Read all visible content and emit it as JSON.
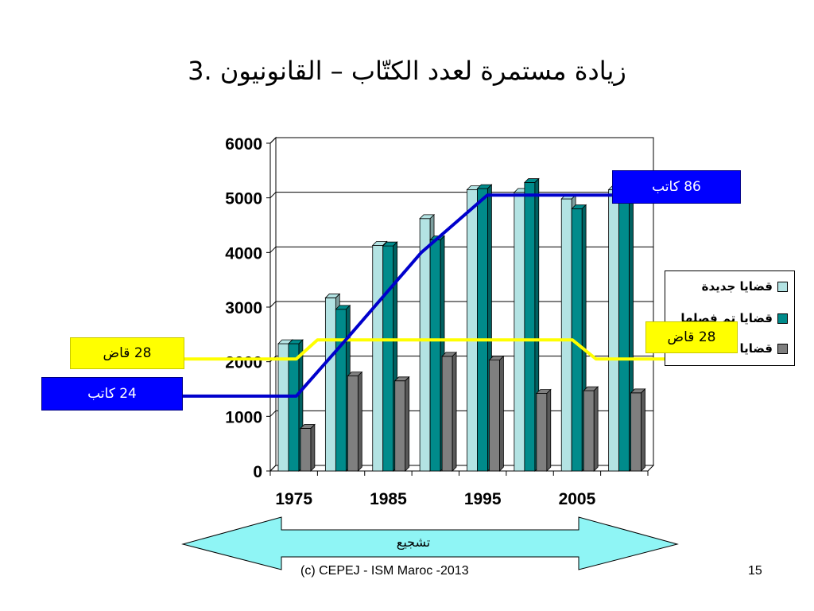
{
  "slide": {
    "title": "3. زيادة مستمرة لعدد الكتّاب – القانونيون",
    "footer": "(c) CEPEJ - ISM Maroc -2013",
    "page_number": "15",
    "arrow_label": "تشجيع"
  },
  "callouts": {
    "judges_left": "28 قاض",
    "judges_right": "28 قاض",
    "clerks_left": "24 كاتب",
    "clerks_right": "86 كاتب"
  },
  "chart_data": {
    "type": "bar",
    "style": "3d-clustered-bar-with-overlay-lines",
    "y_ticks": [
      0,
      1000,
      2000,
      3000,
      4000,
      5000,
      6000
    ],
    "ylim": [
      0,
      6000
    ],
    "x_tick_labels": [
      "1975",
      "1985",
      "1995",
      "2005"
    ],
    "grid": true,
    "legend_placement": "right",
    "groups": 8,
    "series": [
      {
        "name": "قضايا جديدة",
        "color": "#b3e3e3",
        "values": [
          2330,
          3170,
          4130,
          4620,
          5150,
          5100,
          4980,
          5150
        ]
      },
      {
        "name": "قضايا تم فصلها",
        "color": "#008b8b",
        "values": [
          2330,
          2960,
          4120,
          4230,
          5170,
          5280,
          4800,
          4980
        ]
      },
      {
        "name": "قضايا عالقة",
        "color": "#7f7f7f",
        "values": [
          780,
          1740,
          1650,
          2100,
          2030,
          1420,
          1470,
          1430
        ]
      }
    ],
    "overlay_lines": [
      {
        "name": "judges",
        "color": "#ffff00",
        "points": [
          [
            0.0,
            2050
          ],
          [
            0.55,
            2050
          ],
          [
            1.0,
            2400
          ],
          [
            6.4,
            2400
          ],
          [
            6.9,
            2050
          ],
          [
            9.2,
            2050
          ]
        ]
      },
      {
        "name": "clerks",
        "color": "#0000cc",
        "points": [
          [
            0.0,
            1370
          ],
          [
            0.55,
            1370
          ],
          [
            1.6,
            2400
          ],
          [
            3.2,
            4000
          ],
          [
            4.6,
            5050
          ],
          [
            7.8,
            5050
          ]
        ]
      }
    ]
  }
}
